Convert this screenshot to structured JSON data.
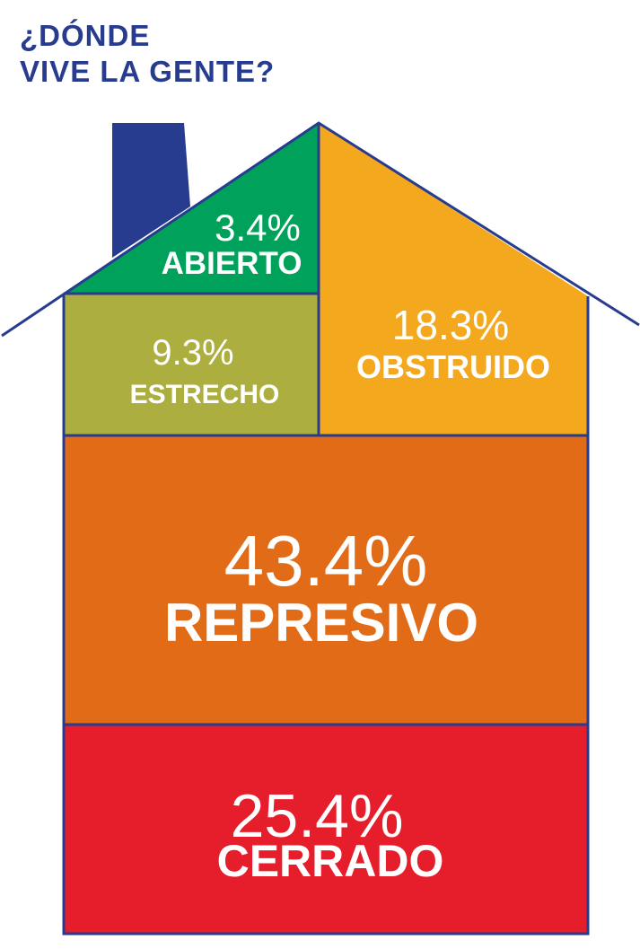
{
  "title": {
    "line1": "¿DÓNDE",
    "line2": "VIVE LA GENTE?"
  },
  "chart_data": {
    "type": "table",
    "categories": [
      "ABIERTO",
      "ESTRECHO",
      "OBSTRUIDO",
      "REPRESIVO",
      "CERRADO"
    ],
    "values": [
      "3.4%",
      "9.3%",
      "18.3%",
      "43.4%",
      "25.4%"
    ],
    "colors": [
      "#00a15a",
      "#acaf3f",
      "#f3a81d",
      "#e16b17",
      "#e61e2b"
    ],
    "outline_color": "#283c8f"
  }
}
